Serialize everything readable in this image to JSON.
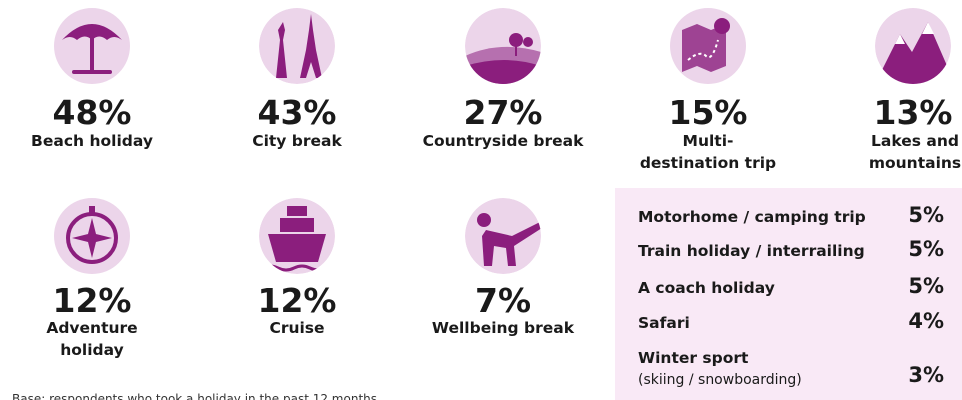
{
  "items": [
    {
      "value": "48%",
      "label": [
        "Beach holiday"
      ]
    },
    {
      "value": "43%",
      "label": [
        "City break"
      ]
    },
    {
      "value": "27%",
      "label": [
        "Countryside break"
      ]
    },
    {
      "value": "15%",
      "label": [
        "Multi-",
        "destination trip"
      ]
    },
    {
      "value": "13%",
      "label": [
        "Lakes and",
        "mountains"
      ]
    },
    {
      "value": "12%",
      "label": [
        "Adventure",
        "holiday"
      ]
    },
    {
      "value": "12%",
      "label": [
        "Cruise"
      ]
    },
    {
      "value": "7%",
      "label": [
        "Wellbeing break"
      ]
    }
  ],
  "other": [
    {
      "label": "Motorhome / camping trip",
      "value": "5%"
    },
    {
      "label": "Train holiday / interrailing",
      "value": "5%"
    },
    {
      "label": "A coach holiday",
      "value": "5%"
    },
    {
      "label": "Safari",
      "value": "4%"
    },
    {
      "label": "Winter sport",
      "sublabel": "(skiing / snowboarding)",
      "value": "3%"
    }
  ],
  "base_note": "Base: respondents who took a holiday in the past 12 months"
}
